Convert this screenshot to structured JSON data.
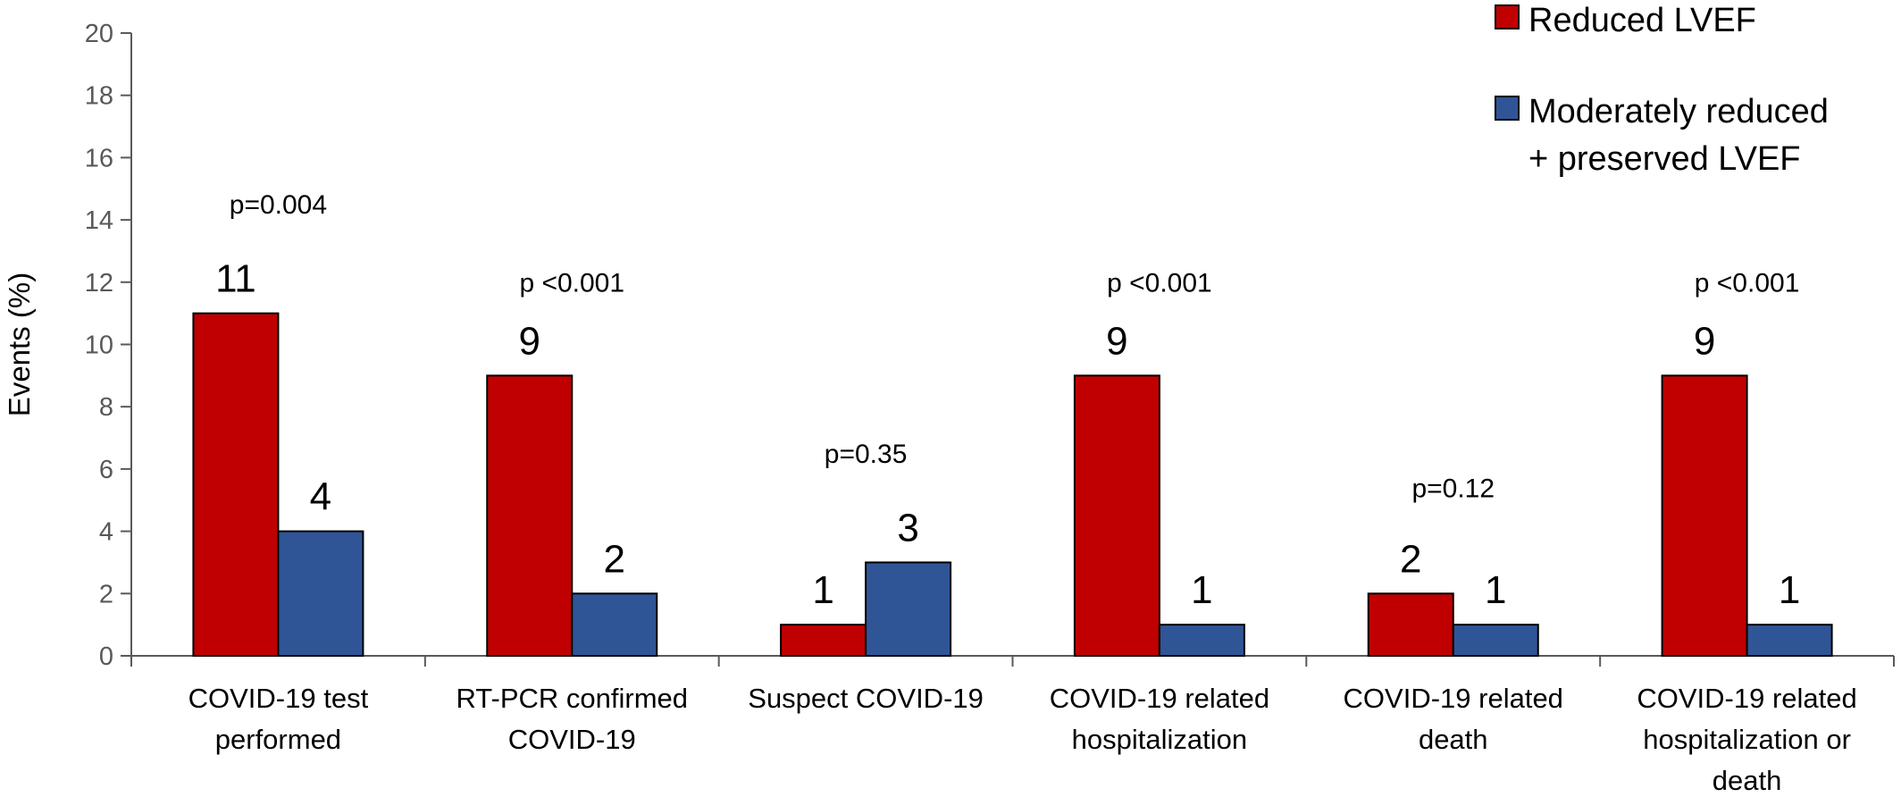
{
  "chart_data": {
    "type": "bar",
    "ylabel": "Events (%)",
    "xlabel": "",
    "ylim": [
      0,
      20
    ],
    "yticks": [
      0,
      2,
      4,
      6,
      8,
      10,
      12,
      14,
      16,
      18,
      20
    ],
    "grid": false,
    "legend_position": "top-right",
    "categories": [
      [
        "COVID-19 test",
        "performed"
      ],
      [
        "RT-PCR confirmed",
        "COVID-19"
      ],
      [
        "Suspect COVID-19"
      ],
      [
        "COVID-19 related",
        "hospitalization"
      ],
      [
        "COVID-19 related",
        "death"
      ],
      [
        "COVID-19 related",
        "hospitalization or",
        "death"
      ]
    ],
    "series": [
      {
        "name": [
          "Reduced LVEF"
        ],
        "color": "#c00000",
        "values": [
          11,
          9,
          1,
          9,
          2,
          9
        ],
        "labels": [
          "11",
          "9",
          "1",
          "9",
          "2",
          "9"
        ]
      },
      {
        "name": [
          "Moderately reduced",
          "+ preserved LVEF"
        ],
        "color": "#2f5597",
        "values": [
          4,
          2,
          3,
          1,
          1,
          1
        ],
        "labels": [
          "4",
          "2",
          "3",
          "1",
          "1",
          "1"
        ]
      }
    ],
    "annotations": [
      {
        "text": "p=0.004",
        "y": 14.2
      },
      {
        "text": "p <0.001",
        "y": 11.7
      },
      {
        "text": "p=0.35",
        "y": 6.2
      },
      {
        "text": "p <0.001",
        "y": 11.7
      },
      {
        "text": "p=0.12",
        "y": 5.1
      },
      {
        "text": "p <0.001",
        "y": 11.7
      }
    ]
  }
}
